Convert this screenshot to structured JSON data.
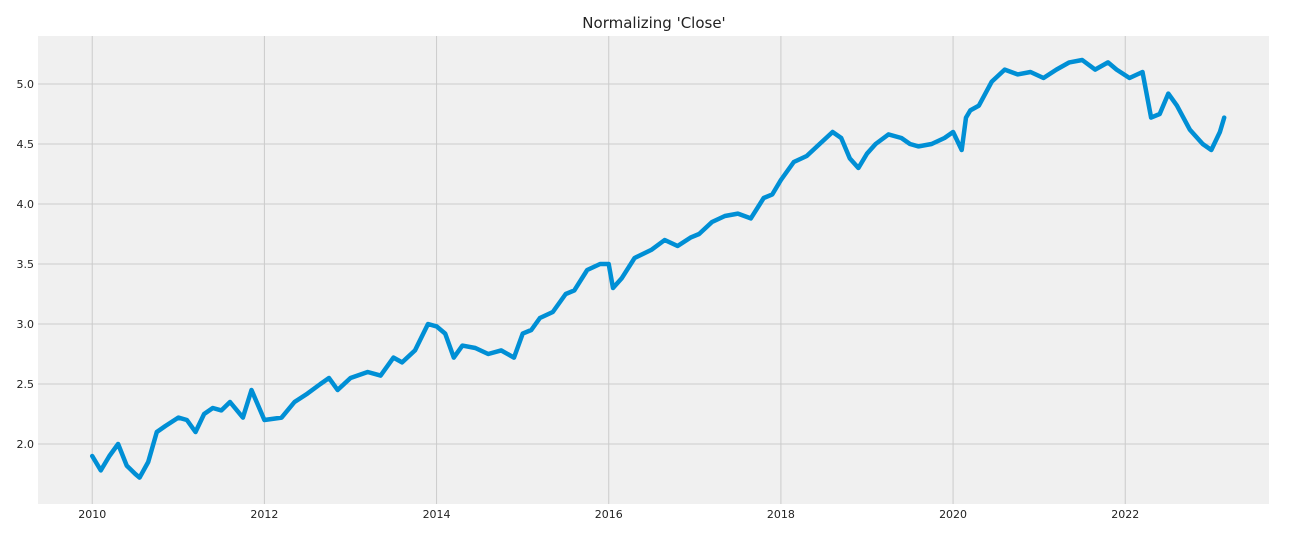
{
  "chart_data": {
    "type": "line",
    "title": "Normalizing 'Close'",
    "xlabel": "",
    "ylabel": "",
    "xlim": [
      2009.37,
      2023.67
    ],
    "ylim": [
      1.5,
      5.4
    ],
    "x_ticks": [
      2010,
      2012,
      2014,
      2016,
      2018,
      2020,
      2022
    ],
    "x_tick_labels": [
      "2010",
      "2012",
      "2014",
      "2016",
      "2018",
      "2020",
      "2022"
    ],
    "y_ticks": [
      2.0,
      2.5,
      3.0,
      3.5,
      4.0,
      4.5,
      5.0
    ],
    "y_tick_labels": [
      "2.0",
      "2.5",
      "3.0",
      "3.5",
      "4.0",
      "4.5",
      "5.0"
    ],
    "grid": true,
    "series": [
      {
        "color": "#008fd5",
        "x": [
          2010.0,
          2010.1,
          2010.2,
          2010.3,
          2010.4,
          2010.5,
          2010.55,
          2010.65,
          2010.75,
          2010.85,
          2011.0,
          2011.1,
          2011.2,
          2011.3,
          2011.4,
          2011.5,
          2011.6,
          2011.75,
          2011.85,
          2012.0,
          2012.2,
          2012.35,
          2012.5,
          2012.65,
          2012.75,
          2012.85,
          2013.0,
          2013.2,
          2013.35,
          2013.5,
          2013.6,
          2013.75,
          2013.9,
          2014.0,
          2014.1,
          2014.2,
          2014.3,
          2014.45,
          2014.6,
          2014.75,
          2014.9,
          2015.0,
          2015.1,
          2015.2,
          2015.35,
          2015.5,
          2015.6,
          2015.75,
          2015.9,
          2016.0,
          2016.05,
          2016.15,
          2016.3,
          2016.5,
          2016.65,
          2016.8,
          2016.95,
          2017.05,
          2017.2,
          2017.35,
          2017.5,
          2017.65,
          2017.8,
          2017.9,
          2018.0,
          2018.15,
          2018.3,
          2018.45,
          2018.6,
          2018.7,
          2018.8,
          2018.9,
          2019.0,
          2019.1,
          2019.25,
          2019.4,
          2019.5,
          2019.6,
          2019.75,
          2019.9,
          2020.0,
          2020.1,
          2020.15,
          2020.2,
          2020.3,
          2020.45,
          2020.6,
          2020.75,
          2020.9,
          2021.05,
          2021.2,
          2021.35,
          2021.5,
          2021.65,
          2021.8,
          2021.9,
          2022.05,
          2022.2,
          2022.3,
          2022.4,
          2022.5,
          2022.6,
          2022.75,
          2022.9,
          2023.0,
          2023.1,
          2023.15
        ],
        "y": [
          1.9,
          1.78,
          1.9,
          2.0,
          1.82,
          1.75,
          1.72,
          1.85,
          2.1,
          2.15,
          2.22,
          2.2,
          2.1,
          2.25,
          2.3,
          2.28,
          2.35,
          2.22,
          2.45,
          2.2,
          2.22,
          2.35,
          2.42,
          2.5,
          2.55,
          2.45,
          2.55,
          2.6,
          2.57,
          2.72,
          2.68,
          2.78,
          3.0,
          2.98,
          2.92,
          2.72,
          2.82,
          2.8,
          2.75,
          2.78,
          2.72,
          2.92,
          2.95,
          3.05,
          3.1,
          3.25,
          3.28,
          3.45,
          3.5,
          3.5,
          3.3,
          3.38,
          3.55,
          3.62,
          3.7,
          3.65,
          3.72,
          3.75,
          3.85,
          3.9,
          3.92,
          3.88,
          4.05,
          4.08,
          4.2,
          4.35,
          4.4,
          4.5,
          4.6,
          4.55,
          4.38,
          4.3,
          4.42,
          4.5,
          4.58,
          4.55,
          4.5,
          4.48,
          4.5,
          4.55,
          4.6,
          4.45,
          4.72,
          4.78,
          4.82,
          5.02,
          5.12,
          5.08,
          5.1,
          5.05,
          5.12,
          5.18,
          5.2,
          5.12,
          5.18,
          5.12,
          5.05,
          5.1,
          4.72,
          4.75,
          4.92,
          4.82,
          4.62,
          4.5,
          4.45,
          4.6,
          4.72
        ]
      }
    ]
  }
}
